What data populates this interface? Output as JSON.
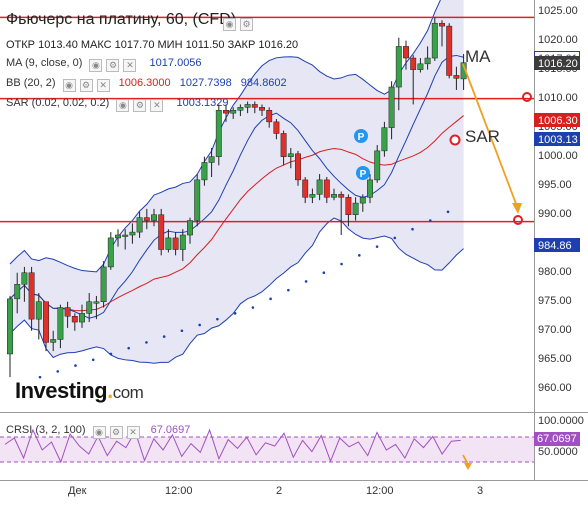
{
  "header": {
    "title": "Фьючерс на платину, 60, (CFD)",
    "ohlc": "ОТКР 1013.40  МАКС 1017.70  МИН 1011.50  ЗАКР 1016.20"
  },
  "indicators": {
    "ma": {
      "label": "MA (9, close, 0)",
      "value": "1017.0056"
    },
    "bb": {
      "label": "BB (20, 2)",
      "basis": "1006.3000",
      "upper": "1027.7398",
      "lower": "984.8602"
    },
    "sar": {
      "label": "SAR (0.02, 0.02, 0.2)",
      "value": "1003.1329"
    },
    "crsi": {
      "label": "CRSI (3, 2, 100)",
      "value": "67.0697"
    }
  },
  "price_scale": {
    "ticks": [
      "1025.00",
      "1020.00",
      "1015.00",
      "1010.00",
      "1005.00",
      "1000.00",
      "995.00",
      "990.00",
      "985.00",
      "980.00",
      "975.00",
      "970.00",
      "965.00",
      "960.00"
    ],
    "boxes": [
      {
        "name": "ma-price-box",
        "text": "1017.01",
        "bg": "#ffffff",
        "fg": "#1e3fb0",
        "border": "#1e3fb0"
      },
      {
        "name": "close-price-box",
        "text": "1016.20",
        "bg": "#3c3c3c",
        "fg": "#ffffff",
        "border": "#3c3c3c"
      },
      {
        "name": "bb-basis-price-box",
        "text": "1006.30",
        "bg": "#d62020",
        "fg": "#ffffff",
        "border": "#d62020"
      },
      {
        "name": "sar-price-box",
        "text": "1003.13",
        "bg": "#1e3fb0",
        "fg": "#ffffff",
        "border": "#1e3fb0"
      },
      {
        "name": "bb-lower-price-box",
        "text": "984.86",
        "bg": "#1e3fb0",
        "fg": "#ffffff",
        "border": "#1e3fb0"
      }
    ]
  },
  "oscillator_scale": {
    "ticks": [
      "100.0000",
      "50.0000"
    ],
    "current_box": "67.0697"
  },
  "time_axis": {
    "labels": [
      "Дек",
      "12:00",
      "2",
      "12:00",
      "3"
    ]
  },
  "annotations": {
    "ma": "MA",
    "sar": "SAR"
  },
  "logo": {
    "brand": "Investing",
    "suffix": "com"
  },
  "colors": {
    "up": "#3aa14a",
    "down": "#e0302a",
    "bb_fill": "#e6e6f5",
    "ma": "#1e3fb0",
    "sar": "#1e3fb0",
    "horizontal_lines": "#e02020",
    "arrow": "#f0a020",
    "crsi": "#a050c0"
  },
  "chart_data": {
    "type": "candlestick",
    "ylim": [
      956,
      1027
    ],
    "horizontal_levels": [
      1024.0,
      1010.0,
      988.8
    ],
    "candles": [
      [
        966.0,
        975.5,
        962.0,
        976.0
      ],
      [
        975.5,
        978.0,
        973.0,
        980.0
      ],
      [
        978.0,
        980.0,
        975.0,
        981.0
      ],
      [
        980.0,
        972.0,
        970.0,
        981.0
      ],
      [
        972.0,
        975.0,
        968.5,
        976.5
      ],
      [
        975.0,
        968.0,
        966.5,
        975.0
      ],
      [
        968.0,
        968.5,
        966.5,
        970.0
      ],
      [
        968.5,
        974.0,
        967.0,
        974.5
      ],
      [
        974.0,
        972.5,
        970.5,
        975.0
      ],
      [
        972.5,
        971.5,
        970.0,
        973.0
      ],
      [
        971.5,
        973.0,
        970.5,
        974.5
      ],
      [
        973.0,
        975.0,
        971.5,
        976.5
      ],
      [
        975.0,
        975.0,
        972.0,
        976.0
      ],
      [
        975.0,
        981.0,
        974.0,
        982.0
      ],
      [
        981.0,
        986.0,
        980.5,
        987.0
      ],
      [
        986.0,
        986.5,
        984.5,
        987.5
      ],
      [
        986.5,
        986.5,
        984.0,
        987.5
      ],
      [
        986.5,
        987.0,
        985.0,
        988.5
      ],
      [
        987.0,
        989.5,
        986.0,
        990.5
      ],
      [
        989.5,
        989.0,
        987.5,
        991.0
      ],
      [
        989.0,
        990.0,
        988.0,
        991.0
      ],
      [
        990.0,
        984.0,
        983.0,
        991.0
      ],
      [
        984.0,
        986.0,
        983.5,
        987.5
      ],
      [
        986.0,
        984.0,
        983.0,
        987.0
      ],
      [
        984.0,
        986.5,
        982.0,
        987.5
      ],
      [
        986.5,
        989.0,
        985.0,
        989.5
      ],
      [
        989.0,
        996.0,
        988.0,
        997.0
      ],
      [
        996.0,
        999.0,
        995.0,
        1000.0
      ],
      [
        999.0,
        1000.0,
        996.5,
        1001.5
      ],
      [
        1000.0,
        1008.0,
        998.5,
        1009.0
      ],
      [
        1008.0,
        1007.5,
        1006.0,
        1009.0
      ],
      [
        1007.5,
        1008.0,
        1006.5,
        1008.5
      ],
      [
        1008.0,
        1008.5,
        1007.0,
        1009.0
      ],
      [
        1008.5,
        1009.0,
        1007.5,
        1009.5
      ],
      [
        1009.0,
        1008.5,
        1007.5,
        1009.5
      ],
      [
        1008.5,
        1008.0,
        1007.0,
        1009.0
      ],
      [
        1008.0,
        1006.0,
        1005.0,
        1008.5
      ],
      [
        1006.0,
        1004.0,
        1003.0,
        1006.5
      ],
      [
        1004.0,
        1000.0,
        998.5,
        1004.5
      ],
      [
        1000.0,
        1000.5,
        998.0,
        1001.5
      ],
      [
        1000.5,
        996.0,
        995.0,
        1001.0
      ],
      [
        996.0,
        993.0,
        992.0,
        996.5
      ],
      [
        993.0,
        993.5,
        992.0,
        994.5
      ],
      [
        993.5,
        996.0,
        992.5,
        997.0
      ],
      [
        996.0,
        993.0,
        992.0,
        996.5
      ],
      [
        993.0,
        993.5,
        992.5,
        994.5
      ],
      [
        993.5,
        993.0,
        986.5,
        994.0
      ],
      [
        993.0,
        990.0,
        988.0,
        993.5
      ],
      [
        990.0,
        992.0,
        989.0,
        993.0
      ],
      [
        992.0,
        993.0,
        990.5,
        993.5
      ],
      [
        993.0,
        996.0,
        992.0,
        997.0
      ],
      [
        996.0,
        1001.0,
        995.5,
        1002.0
      ],
      [
        1001.0,
        1005.0,
        1000.0,
        1006.0
      ],
      [
        1005.0,
        1012.0,
        1003.0,
        1013.0
      ],
      [
        1012.0,
        1019.0,
        1008.0,
        1020.5
      ],
      [
        1019.0,
        1017.0,
        1015.0,
        1020.0
      ],
      [
        1017.0,
        1015.0,
        1009.0,
        1017.5
      ],
      [
        1015.0,
        1016.0,
        1014.5,
        1017.0
      ],
      [
        1016.0,
        1017.0,
        1015.0,
        1019.0
      ],
      [
        1017.0,
        1023.0,
        1016.5,
        1024.0
      ],
      [
        1023.0,
        1022.5,
        1019.0,
        1023.5
      ],
      [
        1022.5,
        1014.0,
        1013.5,
        1023.0
      ],
      [
        1014.0,
        1013.5,
        1011.5,
        1015.5
      ],
      [
        1013.4,
        1016.2,
        1011.5,
        1017.7
      ]
    ],
    "sar_points": [
      [
        968.0,
        962.0
      ],
      [
        970.0,
        963.0
      ],
      [
        972.0,
        964.0
      ],
      [
        974.0,
        965.0
      ],
      [
        976.0,
        966.0
      ],
      [
        978.0,
        967.0
      ],
      [
        980.0,
        968.0
      ],
      [
        982.0,
        969.0
      ],
      [
        984.0,
        970.0
      ],
      [
        986.0,
        971.0
      ],
      [
        988.0,
        972.0
      ],
      [
        990.0,
        973.0
      ],
      [
        992.0,
        974.0
      ],
      [
        994.0,
        975.5
      ],
      [
        996.0,
        977.0
      ],
      [
        998.0,
        978.5
      ],
      [
        1000.0,
        980.0
      ],
      [
        1002.0,
        981.5
      ],
      [
        1004.0,
        983.0
      ],
      [
        1006.0,
        984.5
      ],
      [
        1008.0,
        986.0
      ],
      [
        1010.0,
        987.5
      ],
      [
        1012.0,
        989.0
      ],
      [
        1014.0,
        990.5
      ]
    ],
    "crsi": [
      62,
      70,
      45,
      80,
      55,
      65,
      40,
      75,
      60,
      50,
      72,
      48,
      66,
      58,
      78,
      42,
      69,
      55,
      74,
      47,
      63,
      52,
      80,
      44,
      68,
      57,
      71,
      49,
      64,
      60,
      76,
      46,
      67,
      53,
      73,
      41,
      70,
      59,
      65,
      48,
      77,
      55,
      62,
      45,
      69,
      58,
      72,
      50,
      66,
      67
    ]
  }
}
